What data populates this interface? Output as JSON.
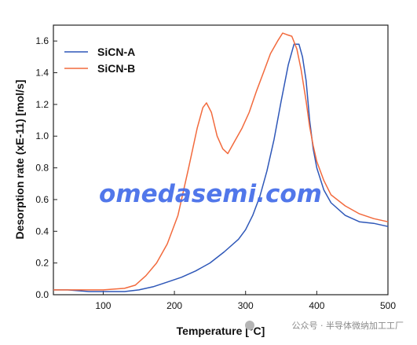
{
  "chart_data": {
    "type": "line",
    "title": "",
    "xlabel": "Temperature [°C]",
    "ylabel": "Desorption rate (xE-11) [mol/s]",
    "xlim": [
      30,
      500
    ],
    "ylim": [
      0,
      1.7
    ],
    "xticks": [
      100,
      200,
      300,
      400,
      500
    ],
    "yticks": [
      0.0,
      0.2,
      0.4,
      0.6,
      0.8,
      1.0,
      1.2,
      1.4,
      1.6
    ],
    "grid": false,
    "legend_position": "top-left",
    "series": [
      {
        "name": "SiCN-A",
        "color": "#2e57b8",
        "x": [
          30,
          50,
          80,
          100,
          130,
          150,
          170,
          190,
          210,
          230,
          250,
          270,
          290,
          300,
          310,
          320,
          330,
          340,
          350,
          360,
          368,
          375,
          380,
          385,
          390,
          395,
          400,
          410,
          420,
          440,
          460,
          480,
          500
        ],
        "y": [
          0.03,
          0.03,
          0.02,
          0.02,
          0.02,
          0.03,
          0.05,
          0.08,
          0.11,
          0.15,
          0.2,
          0.27,
          0.35,
          0.41,
          0.5,
          0.62,
          0.78,
          0.98,
          1.22,
          1.45,
          1.58,
          1.58,
          1.5,
          1.35,
          1.1,
          0.92,
          0.8,
          0.66,
          0.58,
          0.5,
          0.46,
          0.45,
          0.43
        ]
      },
      {
        "name": "SiCN-B",
        "color": "#f26a3d",
        "x": [
          30,
          50,
          80,
          100,
          130,
          145,
          160,
          175,
          190,
          205,
          220,
          232,
          240,
          245,
          252,
          260,
          268,
          275,
          285,
          295,
          305,
          315,
          325,
          335,
          345,
          352,
          358,
          365,
          372,
          378,
          385,
          390,
          395,
          400,
          410,
          420,
          440,
          460,
          480,
          500
        ],
        "y": [
          0.03,
          0.03,
          0.03,
          0.03,
          0.04,
          0.06,
          0.12,
          0.2,
          0.32,
          0.5,
          0.8,
          1.05,
          1.18,
          1.21,
          1.15,
          1.0,
          0.92,
          0.89,
          0.97,
          1.05,
          1.15,
          1.28,
          1.4,
          1.52,
          1.6,
          1.65,
          1.64,
          1.63,
          1.55,
          1.42,
          1.22,
          1.06,
          0.94,
          0.84,
          0.72,
          0.63,
          0.56,
          0.51,
          0.48,
          0.46
        ]
      }
    ]
  },
  "watermark": "omedasemi.com",
  "credit": "公众号 · 半导体微纳加工工厂"
}
